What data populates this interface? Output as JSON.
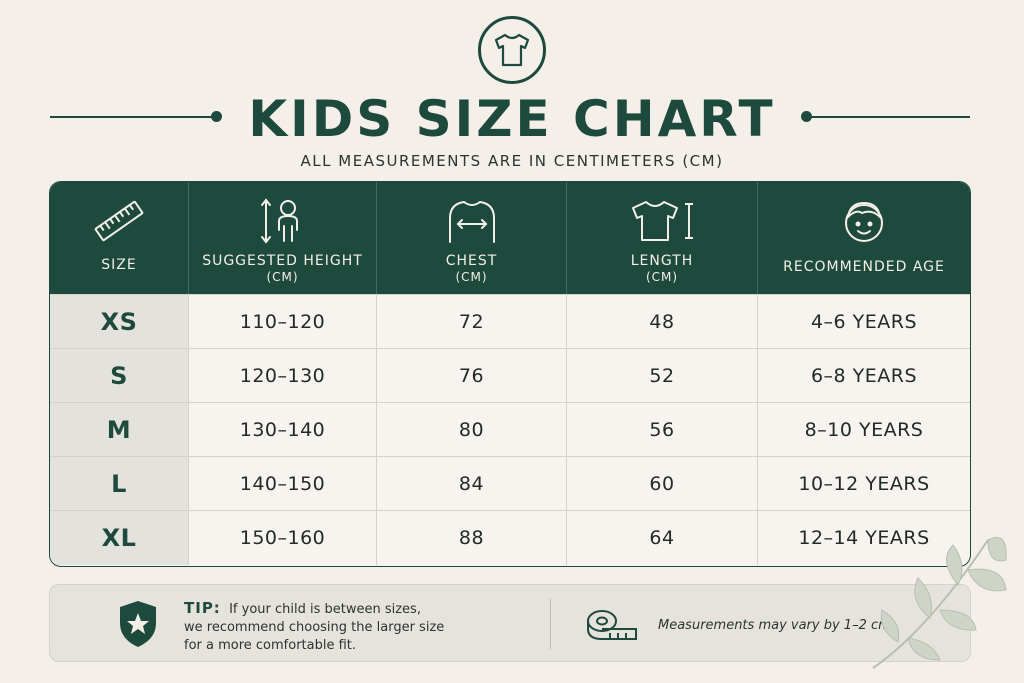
{
  "title": "KIDS SIZE CHART",
  "subtitle": "ALL MEASUREMENTS ARE IN CENTIMETERS (CM)",
  "icons": {
    "logo": "tshirt-icon",
    "size": "ruler-icon",
    "height": "child-height-icon",
    "chest": "chest-measure-icon",
    "length": "tshirt-length-icon",
    "age": "child-face-icon",
    "tip": "shield-star-icon",
    "note": "measuring-tape-icon",
    "decor": "leaf-branch-icon"
  },
  "colors": {
    "primary": "#1d4a3d",
    "background": "#f4efe9"
  },
  "table": {
    "headers": [
      {
        "label": "SIZE",
        "unit": ""
      },
      {
        "label": "SUGGESTED HEIGHT",
        "unit": "(CM)"
      },
      {
        "label": "CHEST",
        "unit": "(CM)"
      },
      {
        "label": "LENGTH",
        "unit": "(CM)"
      },
      {
        "label": "RECOMMENDED AGE",
        "unit": ""
      }
    ],
    "rows": [
      [
        "XS",
        "110–120",
        "72",
        "48",
        "4–6 YEARS"
      ],
      [
        "S",
        "120–130",
        "76",
        "52",
        "6–8 YEARS"
      ],
      [
        "M",
        "130–140",
        "80",
        "56",
        "8–10 YEARS"
      ],
      [
        "L",
        "140–150",
        "84",
        "60",
        "10–12 YEARS"
      ],
      [
        "XL",
        "150–160",
        "88",
        "64",
        "12–14 YEARS"
      ]
    ]
  },
  "tip": {
    "label": "TIP:",
    "line1": "If your child is between sizes,",
    "line2": "we recommend choosing the larger size",
    "line3": "for a more comfortable fit."
  },
  "note": "Measurements may vary by 1–2 cm."
}
